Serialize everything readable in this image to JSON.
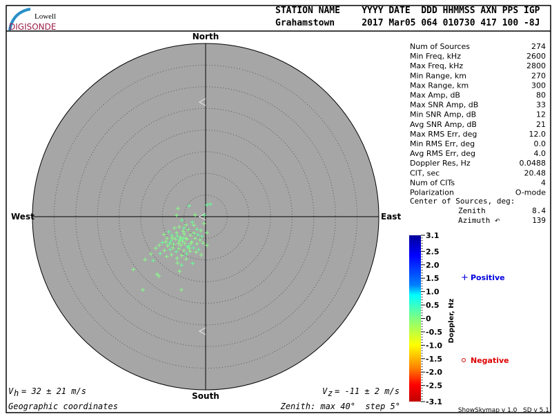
{
  "logo": {
    "line1": "Lowell",
    "line2": "DIGISONDE"
  },
  "header": {
    "labels": "STATION NAME    YYYY DATE  DDD HHMMSS AXN PPS IGP",
    "values": "Grahamstown     2017 Mar05 064 010730 417 100 -8J"
  },
  "stats": [
    {
      "label": "Num of Sources",
      "value": "274"
    },
    {
      "label": "Min Freq, kHz",
      "value": "2600"
    },
    {
      "label": "Max Freq, kHz",
      "value": "2800"
    },
    {
      "label": "Min Range, km",
      "value": "270"
    },
    {
      "label": "Max Range, km",
      "value": "300"
    },
    {
      "label": "Max Amp, dB",
      "value": "80"
    },
    {
      "label": "Max SNR Amp, dB",
      "value": "33"
    },
    {
      "label": "Min SNR Amp, dB",
      "value": "12"
    },
    {
      "label": "Avg SNR Amp, dB",
      "value": "21"
    },
    {
      "label": "Max RMS Err, deg",
      "value": "12.0"
    },
    {
      "label": "Min RMS Err, deg",
      "value": "0.0"
    },
    {
      "label": "Avg RMS Err, deg",
      "value": "4.0"
    },
    {
      "label": "Doppler Res, Hz",
      "value": "0.0488"
    },
    {
      "label": "CIT, sec",
      "value": "20.48"
    },
    {
      "label": "Num of CITs",
      "value": "4"
    },
    {
      "label": "Polarization",
      "value": "O-mode"
    }
  ],
  "center": {
    "title": "Center of Sources, deg:",
    "zenith_label": "Zenith",
    "zenith": "8.4",
    "azimuth_label": "Azimuth",
    "azimuth": "139"
  },
  "directions": {
    "north": "North",
    "south": "South",
    "east": "East",
    "west": "West"
  },
  "footer": {
    "vh": "= 32 ± 21 m/s",
    "vh_sym": "V",
    "vh_sub": "h",
    "vz": "= -11 ± 2 m/s",
    "vz_sym": "V",
    "vz_sub": "z",
    "coords": "Geographic coordinates",
    "zenith": "Zenith: max 40°  step 5°",
    "version": "ShowSkymap v 1.0   SD v 5.1"
  },
  "legend": {
    "positive": "Positive",
    "negative": "Negative",
    "positive_color": "#0000dd",
    "negative_color": "#dd0000"
  },
  "chart_data": {
    "type": "scatter",
    "projection": "polar sky map, zenith angle radial, geographic coordinates",
    "zenith_max_deg": 40,
    "zenith_step_deg": 5,
    "point_units": "[east_deg, north_deg, doppler_hz]",
    "colorbar": {
      "label": "Doppler, Hz",
      "range": [
        -3.1,
        3.1
      ],
      "ticks": [
        "3.1",
        "2.5",
        "2.0",
        "1.5",
        "1.0",
        "0.5",
        "0",
        "-0.5",
        "-1.0",
        "-1.5",
        "-2.0",
        "-2.5",
        "-3.1"
      ],
      "colors": [
        "#00009a",
        "#0000ff",
        "#0080ff",
        "#00ffff",
        "#80ff80",
        "#ffff00",
        "#ff8000",
        "#ff0000",
        "#c00000"
      ]
    },
    "points": [
      [
        1.1,
        2.9,
        0.2
      ],
      [
        0.3,
        2.7,
        0.2
      ],
      [
        -6.4,
        1.9,
        0.1
      ],
      [
        -3.8,
        2.5,
        0.2
      ],
      [
        -6.7,
        0.3,
        0.1
      ],
      [
        -2.4,
        0.4,
        0.1
      ],
      [
        -0.3,
        0.3,
        0.2
      ],
      [
        -16.7,
        -12.2,
        0.1
      ],
      [
        -14.5,
        -16.9,
        0.1
      ],
      [
        -5.6,
        -16.9,
        0.1
      ],
      [
        -10.8,
        -13.7,
        0.1
      ],
      [
        -11.2,
        -13.3,
        0.1
      ],
      [
        -12.6,
        -8.6,
        0.1
      ],
      [
        -14.0,
        -9.9,
        0.1
      ],
      [
        -12.1,
        -10.1,
        0.2
      ],
      [
        -9.0,
        -9.2,
        0.1
      ],
      [
        -8.2,
        -7.6,
        0.2
      ],
      [
        -6.0,
        -12.6,
        0.1
      ],
      [
        -6.5,
        -10.7,
        0.1
      ],
      [
        -5.6,
        -11.2,
        0.2
      ],
      [
        -4.5,
        -9.8,
        0.1
      ],
      [
        -3.0,
        -10.8,
        0.2
      ],
      [
        -1.0,
        -8.8,
        0.1
      ],
      [
        0.3,
        -6.6,
        0.1
      ],
      [
        0.3,
        -3.7,
        0.1
      ],
      [
        -0.4,
        -1.6,
        0.1
      ],
      [
        -1.1,
        -3.2,
        0.1
      ],
      [
        -0.9,
        -4.6,
        0.2
      ],
      [
        -2.0,
        -2.9,
        0.2
      ],
      [
        -2.7,
        -2.0,
        0.1
      ],
      [
        -3.1,
        -1.3,
        0.2
      ],
      [
        -4.0,
        -3.0,
        0.1
      ],
      [
        -4.5,
        -1.9,
        0.1
      ],
      [
        -5.5,
        -0.8,
        0.2
      ],
      [
        -5.2,
        -3.4,
        0.1
      ],
      [
        -6.7,
        -3.7,
        0.1
      ],
      [
        -7.8,
        -4.3,
        0.2
      ],
      [
        -8.9,
        -5.0,
        0.1
      ],
      [
        -9.6,
        -4.1,
        0.1
      ],
      [
        -10.0,
        -6.0,
        0.2
      ],
      [
        -10.7,
        -6.6,
        0.1
      ],
      [
        -11.5,
        -7.3,
        0.1
      ],
      [
        -10.5,
        -8.5,
        0.2
      ],
      [
        -9.5,
        -7.8,
        0.1
      ],
      [
        -8.8,
        -6.7,
        0.1
      ],
      [
        -8.0,
        -5.6,
        0.2
      ],
      [
        -7.4,
        -6.4,
        0.1
      ],
      [
        -7.0,
        -5.2,
        0.1
      ],
      [
        -6.5,
        -4.5,
        0.2
      ],
      [
        -6.0,
        -5.6,
        0.1
      ],
      [
        -5.7,
        -6.6,
        0.1
      ],
      [
        -5.2,
        -5.0,
        0.2
      ],
      [
        -4.8,
        -6.2,
        0.1
      ],
      [
        -4.3,
        -5.2,
        0.1
      ],
      [
        -3.9,
        -6.8,
        0.2
      ],
      [
        -3.5,
        -4.3,
        0.1
      ],
      [
        -3.2,
        -5.8,
        0.1
      ],
      [
        -2.8,
        -7.2,
        0.2
      ],
      [
        -2.4,
        -5.0,
        0.1
      ],
      [
        -2.0,
        -6.3,
        0.1
      ],
      [
        -1.6,
        -7.6,
        0.2
      ],
      [
        -1.3,
        -5.4,
        0.1
      ],
      [
        -6.2,
        -7.4,
        0.1
      ],
      [
        -6.8,
        -8.1,
        0.2
      ],
      [
        -7.5,
        -7.2,
        0.1
      ],
      [
        -5.0,
        -7.8,
        0.1
      ],
      [
        -4.4,
        -8.6,
        0.2
      ],
      [
        -3.6,
        -8.0,
        0.1
      ],
      [
        -5.5,
        -9.0,
        0.1
      ],
      [
        -7.9,
        -8.8,
        0.1
      ],
      [
        -8.5,
        -3.5,
        0.2
      ],
      [
        -7.2,
        -2.6,
        0.1
      ],
      [
        -6.1,
        -2.4,
        0.1
      ],
      [
        -5.0,
        -2.6,
        0.2
      ],
      [
        -3.8,
        -7.3,
        0.1
      ],
      [
        -4.9,
        -4.0,
        0.1
      ],
      [
        -5.8,
        -4.8,
        0.1
      ],
      [
        -6.3,
        -6.2,
        0.1
      ],
      [
        -4.2,
        -7.0,
        0.2
      ],
      [
        -5.3,
        -5.7,
        0.1
      ],
      [
        -4.6,
        -5.0,
        0.1
      ],
      [
        -5.9,
        -5.3,
        0.2
      ],
      [
        -3.4,
        -6.2,
        0.1
      ],
      [
        -2.7,
        -3.8,
        0.1
      ],
      [
        -1.8,
        -4.2,
        0.2
      ],
      [
        -7.7,
        -4.9,
        0.1
      ],
      [
        -9.2,
        -5.8,
        0.1
      ],
      [
        -8.3,
        -6.2,
        0.2
      ],
      [
        -2.2,
        -8.2,
        0.1
      ],
      [
        -6.6,
        -9.6,
        0.1
      ],
      [
        -0.6,
        -6.1,
        0.1
      ]
    ]
  }
}
